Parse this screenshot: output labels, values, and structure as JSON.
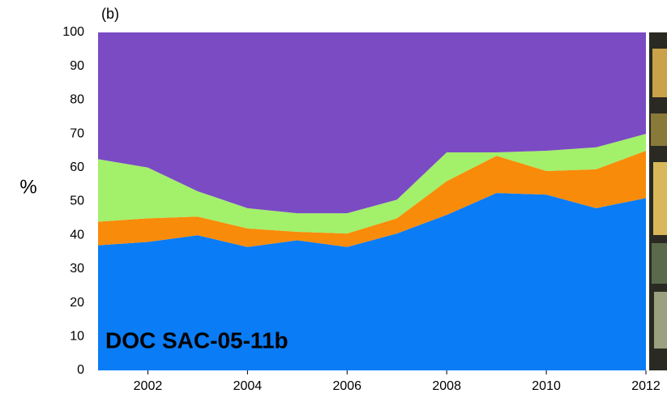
{
  "chart_data": {
    "type": "stacked_area",
    "panel_label": "(b)",
    "y_label": "%",
    "annotation": "DOC SAC-05-11b",
    "x": [
      2001,
      2002,
      2003,
      2004,
      2005,
      2006,
      2007,
      2008,
      2009,
      2010,
      2011,
      2012
    ],
    "xlim": [
      2001,
      2012
    ],
    "xticks": [
      2002,
      2004,
      2006,
      2008,
      2010,
      2012
    ],
    "ylim": [
      0,
      100
    ],
    "yticks": [
      0,
      10,
      20,
      30,
      40,
      50,
      60,
      70,
      80,
      90,
      100
    ],
    "series": [
      {
        "color": "#0a7cf5",
        "values": [
          37,
          38,
          40,
          36.5,
          38.5,
          36.5,
          40.5,
          46,
          52.5,
          52,
          48,
          51
        ]
      },
      {
        "color": "#f98b0a",
        "values": [
          7,
          7,
          5.5,
          5.5,
          2.5,
          4,
          4.5,
          10,
          11,
          7,
          11.5,
          14
        ]
      },
      {
        "color": "#a3f06a",
        "values": [
          18.5,
          15,
          7.5,
          6,
          5.5,
          6,
          5.5,
          8.5,
          1,
          6,
          6.5,
          5
        ]
      },
      {
        "color": "#7b4bc4",
        "values": [
          37.5,
          40,
          47,
          52,
          53.5,
          53.5,
          49.5,
          35.5,
          35.5,
          35,
          34,
          30
        ]
      }
    ]
  }
}
